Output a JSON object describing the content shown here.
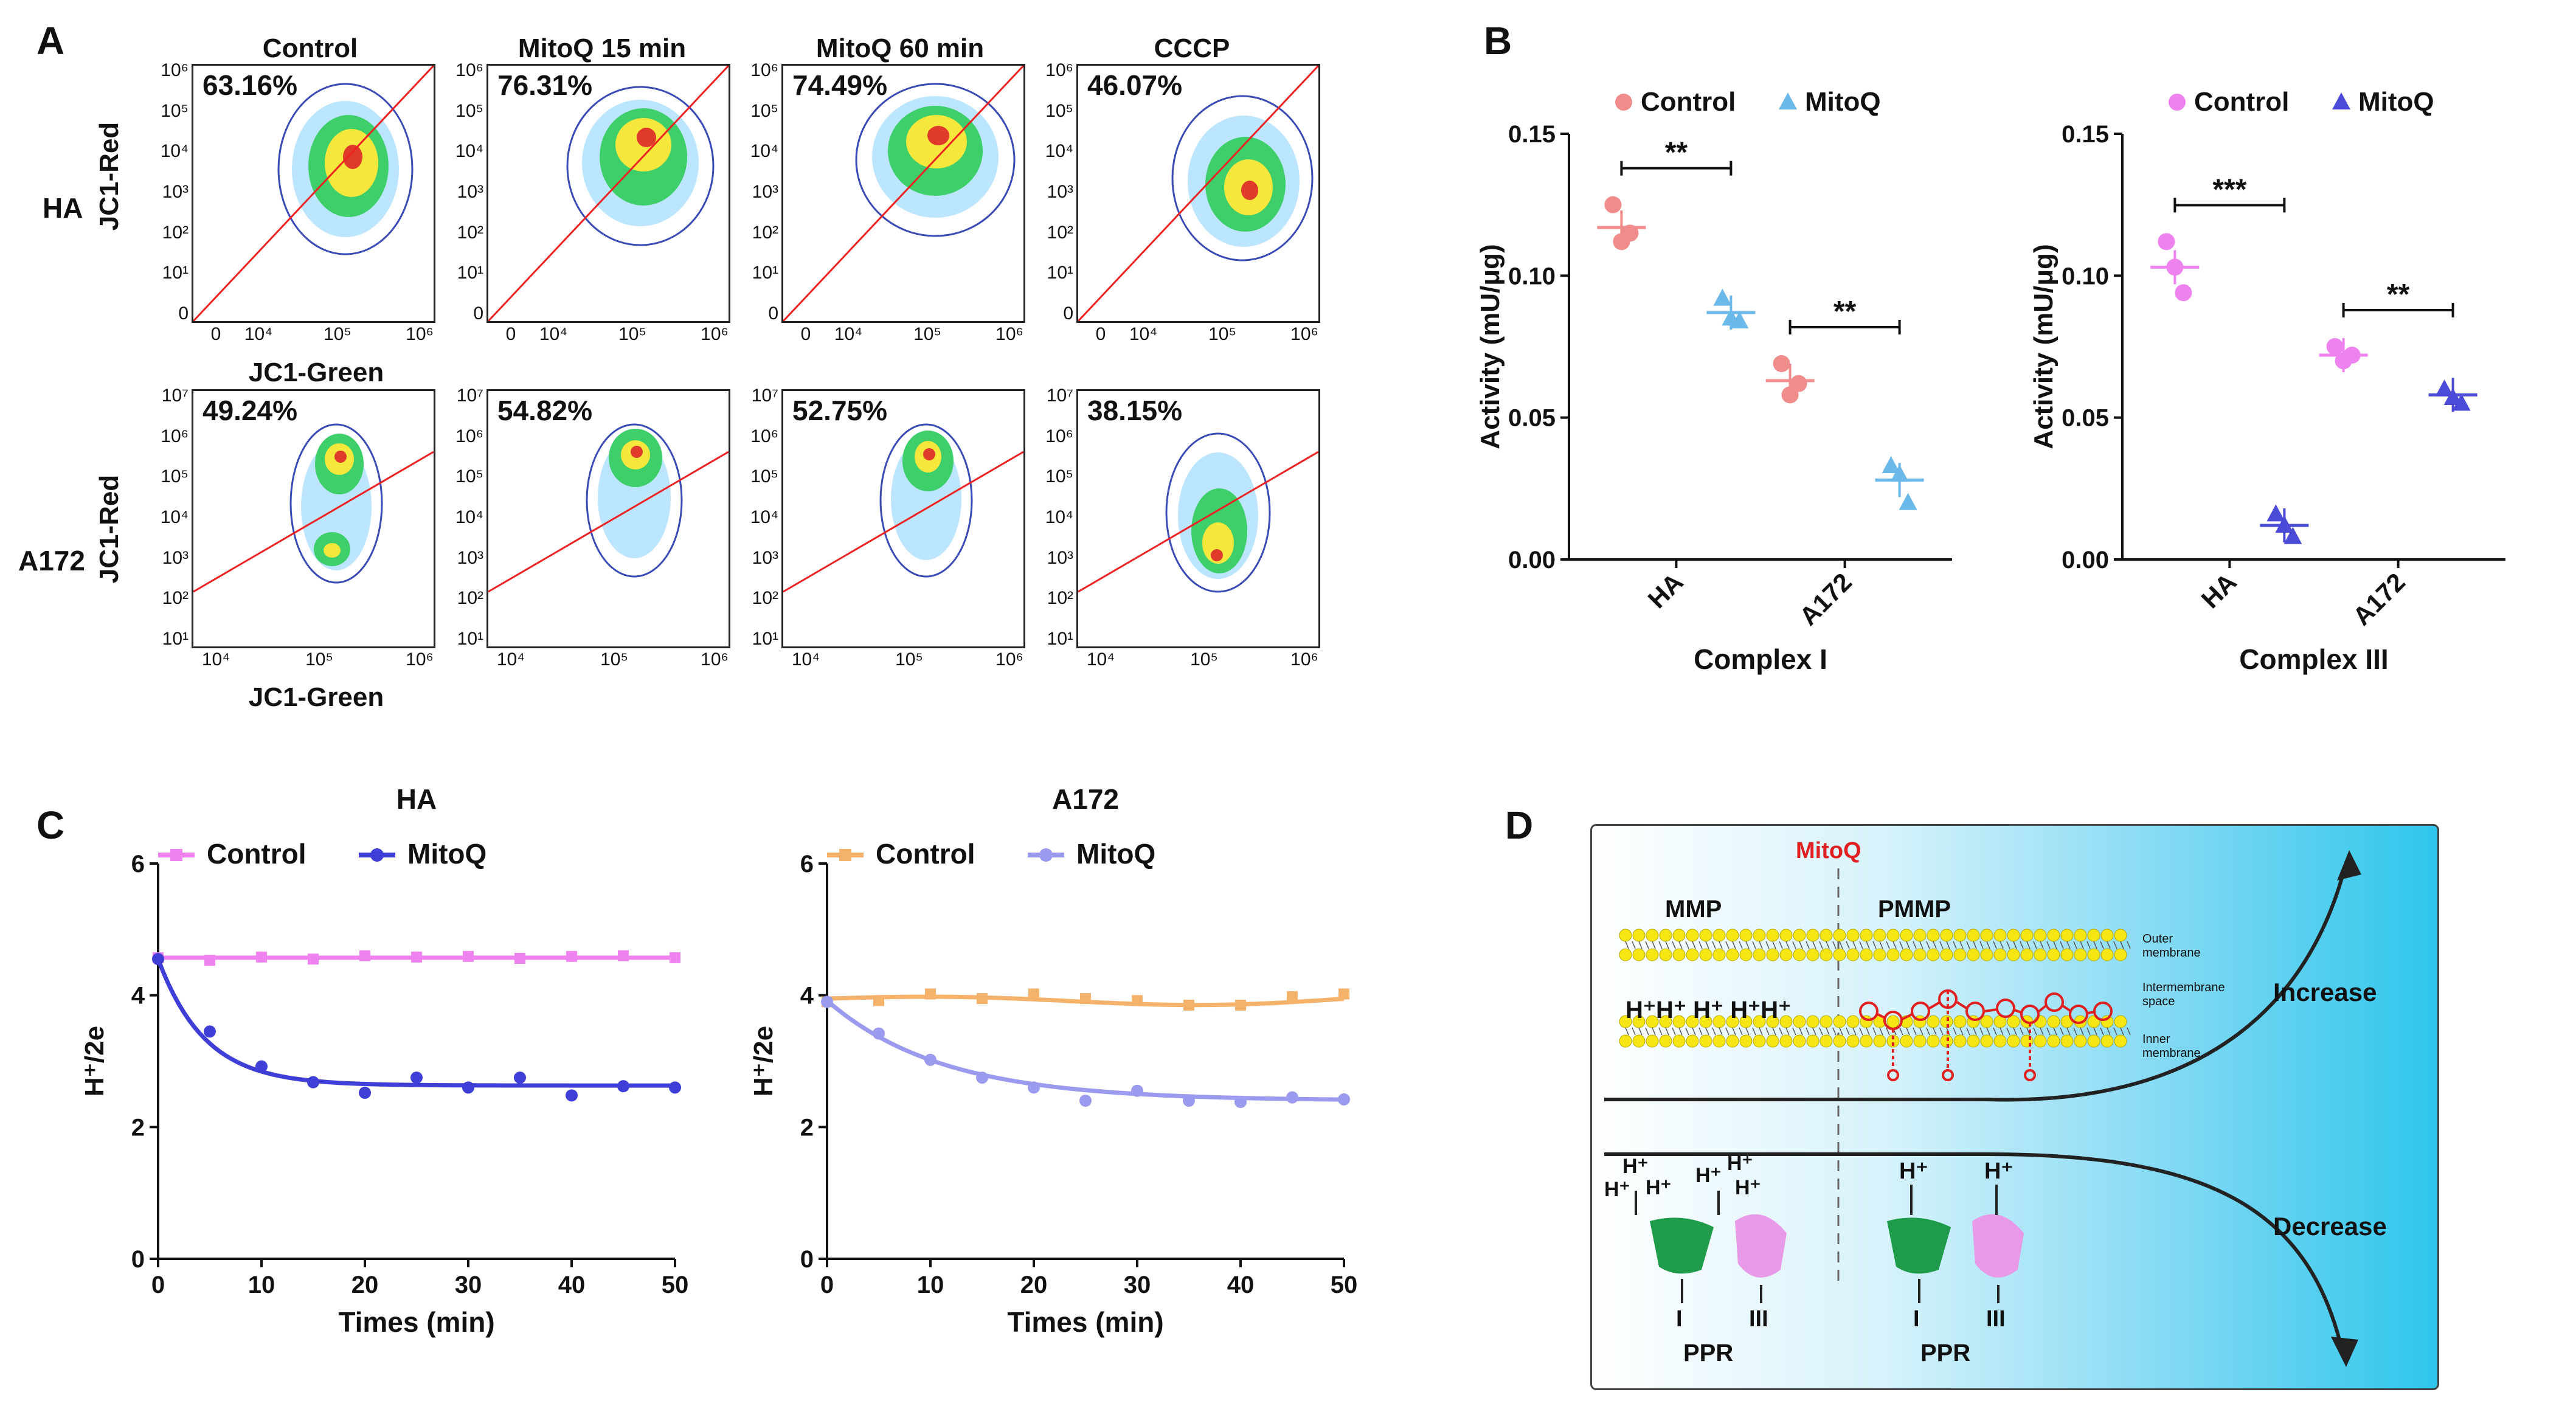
{
  "panels": {
    "A": {
      "letter": "A",
      "columns": [
        "Control",
        "MitoQ 15 min",
        "MitoQ 60 min",
        "CCCP"
      ],
      "rows": [
        {
          "label": "HA",
          "y_axis": "JC1-Red",
          "x_axis": "JC1-Green",
          "y_ticks": [
            "10⁶",
            "10⁵",
            "10⁴",
            "10³",
            "10²",
            "10¹",
            "0"
          ],
          "x_ticks": [
            "0",
            "10⁴",
            "10⁵",
            "10⁶"
          ],
          "percents": [
            "63.16%",
            "76.31%",
            "74.49%",
            "46.07%"
          ]
        },
        {
          "label": "A172",
          "y_axis": "JC1-Red",
          "x_axis": "JC1-Green",
          "y_ticks": [
            "10⁷",
            "10⁶",
            "10⁵",
            "10⁴",
            "10³",
            "10²",
            "10¹"
          ],
          "x_ticks": [
            "10⁴",
            "10⁵",
            "10⁶"
          ],
          "percents": [
            "49.24%",
            "54.82%",
            "52.75%",
            "38.15%"
          ]
        }
      ]
    },
    "B": {
      "letter": "B"
    },
    "C": {
      "letter": "C"
    },
    "D": {
      "letter": "D",
      "mitoq": "MitoQ",
      "mmp": "MMP",
      "pmmp": "PMMP",
      "outer": "Outer membrane",
      "inter": "Intermembrane space",
      "inner": "Inner membrane",
      "protons_left": "H⁺H⁺ H⁺ H⁺H⁺",
      "increase": "Increase",
      "decrease": "Decrease",
      "hplus": "H⁺",
      "complex_I": "I",
      "complex_III": "III",
      "ppr": "PPR"
    }
  },
  "chart_data": [
    {
      "id": "B1",
      "type": "scatter",
      "title": "",
      "xlabel": "Complex I",
      "ylabel": "Activity (mU/μg)",
      "categories": [
        "HA",
        "A172"
      ],
      "ylim": [
        0,
        0.15
      ],
      "yticks": [
        "0.00",
        "0.05",
        "0.10",
        "0.15"
      ],
      "series": [
        {
          "name": "Control",
          "color": "#f08c8c",
          "marker": "circle",
          "points": [
            [
              0.125,
              0.112,
              0.115
            ],
            [
              0.069,
              0.058,
              0.062
            ]
          ],
          "mean": [
            0.117,
            0.063
          ]
        },
        {
          "name": "MitoQ",
          "color": "#6bb8ea",
          "marker": "triangle",
          "points": [
            [
              0.092,
              0.085,
              0.084
            ],
            [
              0.033,
              0.03,
              0.02
            ]
          ],
          "mean": [
            0.087,
            0.028
          ]
        }
      ],
      "significance": [
        "**",
        "**"
      ]
    },
    {
      "id": "B2",
      "type": "scatter",
      "title": "",
      "xlabel": "Complex III",
      "ylabel": "Activity (mU/μg)",
      "categories": [
        "HA",
        "A172"
      ],
      "ylim": [
        0,
        0.15
      ],
      "yticks": [
        "0.00",
        "0.05",
        "0.10",
        "0.15"
      ],
      "series": [
        {
          "name": "Control",
          "color": "#ee82ee",
          "marker": "circle",
          "points": [
            [
              0.112,
              0.103,
              0.094
            ],
            [
              0.075,
              0.07,
              0.072
            ]
          ],
          "mean": [
            0.103,
            0.072
          ]
        },
        {
          "name": "MitoQ",
          "color": "#4b4bd8",
          "marker": "triangle",
          "points": [
            [
              0.016,
              0.012,
              0.008
            ],
            [
              0.06,
              0.057,
              0.055
            ]
          ],
          "mean": [
            0.012,
            0.058
          ]
        }
      ],
      "significance": [
        "***",
        "**"
      ]
    },
    {
      "id": "C1",
      "type": "line",
      "title": "HA",
      "xlabel": "Times (min)",
      "ylabel": "H⁺/2e",
      "xlim": [
        0,
        50
      ],
      "ylim": [
        0,
        6
      ],
      "xticks": [
        "0",
        "10",
        "20",
        "30",
        "40",
        "50"
      ],
      "yticks": [
        "0",
        "2",
        "4",
        "6"
      ],
      "series": [
        {
          "name": "Control",
          "color": "#ee82ee",
          "marker": "square",
          "x": [
            0,
            5,
            10,
            15,
            20,
            25,
            30,
            35,
            40,
            45,
            50
          ],
          "y": [
            4.57,
            4.53,
            4.58,
            4.55,
            4.6,
            4.58,
            4.59,
            4.56,
            4.59,
            4.6,
            4.57
          ],
          "fit": 4.57
        },
        {
          "name": "MitoQ",
          "color": "#3f3fd8",
          "marker": "circle",
          "x": [
            0,
            5,
            10,
            15,
            20,
            25,
            30,
            35,
            40,
            45,
            50
          ],
          "y": [
            4.55,
            3.45,
            2.92,
            2.68,
            2.52,
            2.75,
            2.6,
            2.75,
            2.48,
            2.62,
            2.6
          ],
          "fit_start": 4.55,
          "fit_plateau": 2.63,
          "fit_k": 0.22
        }
      ]
    },
    {
      "id": "C2",
      "type": "line",
      "title": "A172",
      "xlabel": "Times (min)",
      "ylabel": "H⁺/2e",
      "xlim": [
        0,
        50
      ],
      "ylim": [
        0,
        6
      ],
      "xticks": [
        "0",
        "10",
        "20",
        "30",
        "40",
        "50"
      ],
      "yticks": [
        "0",
        "2",
        "4",
        "6"
      ],
      "series": [
        {
          "name": "Control",
          "color": "#f5b26b",
          "marker": "square",
          "x": [
            0,
            5,
            10,
            15,
            20,
            25,
            30,
            35,
            40,
            45,
            50
          ],
          "y": [
            3.9,
            3.92,
            4.02,
            3.95,
            4.02,
            3.95,
            3.92,
            3.85,
            3.85,
            3.98,
            4.02
          ],
          "fit_kind": "wave"
        },
        {
          "name": "MitoQ",
          "color": "#9a9aef",
          "marker": "circle",
          "x": [
            0,
            5,
            10,
            15,
            20,
            25,
            30,
            35,
            40,
            45,
            50
          ],
          "y": [
            3.9,
            3.42,
            3.02,
            2.75,
            2.6,
            2.4,
            2.55,
            2.4,
            2.38,
            2.45,
            2.42
          ],
          "fit_start": 3.92,
          "fit_plateau": 2.4,
          "fit_k": 0.09
        }
      ]
    }
  ]
}
